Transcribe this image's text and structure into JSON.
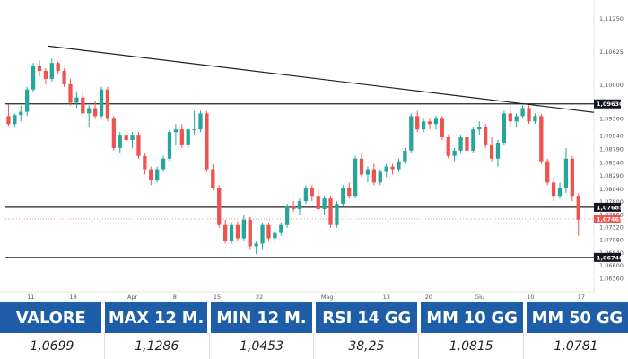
{
  "chart_data": {
    "type": "candlestick",
    "y_ticks": [
      "1,11250",
      "1,10625",
      "1,10000",
      "1,09630",
      "1,09360",
      "1,09040",
      "1,08790",
      "1,08540",
      "1,08290",
      "1,08040",
      "1,07800",
      "1,07685",
      "1,07560",
      "1,07465",
      "1,07320",
      "1,07080",
      "1,06840",
      "1,06740",
      "1,06600",
      "1,06360"
    ],
    "x_ticks": [
      "11",
      "18",
      "Apr",
      "8",
      "15",
      "22",
      "Mag",
      "13",
      "20",
      "Giu",
      "10",
      "17"
    ],
    "ylim": [
      1.0618,
      1.1145
    ],
    "horizontal_lines": [
      {
        "value": 1.0963,
        "label": "1,09630"
      },
      {
        "value": 1.07685,
        "label": "1,07685"
      },
      {
        "value": 1.0674,
        "label": "1,06740"
      }
    ],
    "trendline": [
      [
        1,
        1.1072
      ],
      [
        94,
        1.0947
      ]
    ],
    "last_price": {
      "value": 1.07465,
      "label": "1,07465"
    },
    "candles": [
      [
        1.094,
        1.0962,
        1.0922,
        1.0925
      ],
      [
        1.0925,
        1.0945,
        1.0918,
        1.0942
      ],
      [
        1.0942,
        1.096,
        1.093,
        1.0948
      ],
      [
        1.0948,
        1.0995,
        1.094,
        1.099
      ],
      [
        1.099,
        1.104,
        1.0985,
        1.1035
      ],
      [
        1.1035,
        1.1045,
        1.1015,
        1.1025
      ],
      [
        1.1025,
        1.103,
        1.1,
        1.101
      ],
      [
        1.101,
        1.1048,
        1.1005,
        1.104
      ],
      [
        1.104,
        1.1043,
        1.102,
        1.1025
      ],
      [
        1.1025,
        1.103,
        1.0995,
        1.1
      ],
      [
        1.1,
        1.101,
        1.096,
        1.0965
      ],
      [
        1.0965,
        1.0985,
        1.0955,
        1.0975
      ],
      [
        1.0975,
        1.099,
        1.094,
        1.0945
      ],
      [
        1.0945,
        1.096,
        1.092,
        1.0955
      ],
      [
        1.0955,
        1.0968,
        1.0935,
        1.094
      ],
      [
        1.094,
        1.0995,
        1.0935,
        1.099
      ],
      [
        1.099,
        1.0995,
        1.093,
        1.0935
      ],
      [
        1.0935,
        1.094,
        1.0875,
        1.088
      ],
      [
        1.088,
        1.091,
        1.087,
        1.0905
      ],
      [
        1.0905,
        1.0915,
        1.089,
        1.0895
      ],
      [
        1.0895,
        1.091,
        1.088,
        1.0905
      ],
      [
        1.0905,
        1.091,
        1.086,
        1.0865
      ],
      [
        1.0865,
        1.087,
        1.083,
        1.084
      ],
      [
        1.084,
        1.0845,
        1.081,
        1.082
      ],
      [
        1.082,
        1.0845,
        1.0815,
        1.084
      ],
      [
        1.084,
        1.0865,
        1.0835,
        1.086
      ],
      [
        1.086,
        1.0915,
        1.0855,
        1.091
      ],
      [
        1.091,
        1.0925,
        1.0885,
        1.0915
      ],
      [
        1.0915,
        1.0925,
        1.088,
        1.0885
      ],
      [
        1.0885,
        1.092,
        1.088,
        1.0915
      ],
      [
        1.0915,
        1.095,
        1.0905,
        1.0915
      ],
      [
        1.0915,
        1.095,
        1.091,
        1.0945
      ],
      [
        1.0945,
        1.095,
        1.0835,
        1.084
      ],
      [
        1.084,
        1.085,
        1.08,
        1.0805
      ],
      [
        1.0805,
        1.081,
        1.073,
        1.0735
      ],
      [
        1.0735,
        1.0745,
        1.07,
        1.0705
      ],
      [
        1.0705,
        1.074,
        1.07,
        1.0735
      ],
      [
        1.0735,
        1.0742,
        1.0705,
        1.071
      ],
      [
        1.071,
        1.0755,
        1.0705,
        1.0745
      ],
      [
        1.0745,
        1.075,
        1.069,
        1.0695
      ],
      [
        1.0695,
        1.0705,
        1.068,
        1.07
      ],
      [
        1.07,
        1.074,
        1.069,
        1.0735
      ],
      [
        1.0735,
        1.0738,
        1.0705,
        1.071
      ],
      [
        1.071,
        1.0725,
        1.07,
        1.072
      ],
      [
        1.072,
        1.074,
        1.0715,
        1.0735
      ],
      [
        1.0735,
        1.0775,
        1.073,
        1.077
      ],
      [
        1.077,
        1.078,
        1.076,
        1.0765
      ],
      [
        1.0765,
        1.0785,
        1.0755,
        1.078
      ],
      [
        1.078,
        1.081,
        1.0775,
        1.0805
      ],
      [
        1.0805,
        1.081,
        1.078,
        1.079
      ],
      [
        1.079,
        1.08,
        1.076,
        1.0765
      ],
      [
        1.0765,
        1.079,
        1.0755,
        1.0785
      ],
      [
        1.0785,
        1.079,
        1.073,
        1.0735
      ],
      [
        1.0735,
        1.078,
        1.073,
        1.0775
      ],
      [
        1.0775,
        1.081,
        1.077,
        1.0805
      ],
      [
        1.0805,
        1.0815,
        1.0785,
        1.079
      ],
      [
        1.079,
        1.0865,
        1.0785,
        1.086
      ],
      [
        1.086,
        1.087,
        1.0825,
        1.083
      ],
      [
        1.083,
        1.0845,
        1.0815,
        1.084
      ],
      [
        1.084,
        1.085,
        1.081,
        1.0815
      ],
      [
        1.0815,
        1.084,
        1.081,
        1.0835
      ],
      [
        1.0835,
        1.085,
        1.0825,
        1.0845
      ],
      [
        1.0845,
        1.085,
        1.083,
        1.084
      ],
      [
        1.084,
        1.086,
        1.0835,
        1.0855
      ],
      [
        1.0855,
        1.088,
        1.085,
        1.0875
      ],
      [
        1.0875,
        1.0945,
        1.087,
        1.094
      ],
      [
        1.094,
        1.095,
        1.091,
        1.0915
      ],
      [
        1.0915,
        1.0935,
        1.091,
        1.093
      ],
      [
        1.093,
        1.0935,
        1.0915,
        1.0925
      ],
      [
        1.0925,
        1.094,
        1.0915,
        1.0935
      ],
      [
        1.0935,
        1.094,
        1.0895,
        1.09
      ],
      [
        1.09,
        1.0905,
        1.086,
        1.0865
      ],
      [
        1.0865,
        1.088,
        1.0855,
        1.0875
      ],
      [
        1.0875,
        1.0905,
        1.087,
        1.09
      ],
      [
        1.09,
        1.091,
        1.087,
        1.0875
      ],
      [
        1.0875,
        1.092,
        1.087,
        1.0915
      ],
      [
        1.0915,
        1.093,
        1.0905,
        1.092
      ],
      [
        1.092,
        1.0925,
        1.088,
        1.0885
      ],
      [
        1.0885,
        1.09,
        1.0855,
        1.086
      ],
      [
        1.086,
        1.0895,
        1.0845,
        1.089
      ],
      [
        1.089,
        1.095,
        1.0885,
        1.0945
      ],
      [
        1.0945,
        1.096,
        1.092,
        1.093
      ],
      [
        1.093,
        1.0945,
        1.092,
        1.094
      ],
      [
        1.094,
        1.096,
        1.0935,
        1.0955
      ],
      [
        1.0955,
        1.096,
        1.0925,
        1.093
      ],
      [
        1.093,
        1.0945,
        1.0925,
        1.094
      ],
      [
        1.094,
        1.0945,
        1.085,
        1.0855
      ],
      [
        1.0855,
        1.086,
        1.081,
        1.0815
      ],
      [
        1.0815,
        1.0825,
        1.078,
        1.079
      ],
      [
        1.079,
        1.0815,
        1.0785,
        1.0805
      ],
      [
        1.0805,
        1.088,
        1.0795,
        1.086
      ],
      [
        1.086,
        1.0865,
        1.078,
        1.079
      ],
      [
        1.079,
        1.0795,
        1.0715,
        1.0745
      ]
    ]
  },
  "stats": {
    "headers": [
      "VALORE",
      "MAX 12 M.",
      "MIN 12 M.",
      "RSI 14 GG",
      "MM 10 GG",
      "MM 50 GG"
    ],
    "values": [
      "1,0699",
      "1,1286",
      "1,0453",
      "38,25",
      "1,0815",
      "1,0781"
    ]
  },
  "colors": {
    "up": "#26a69a",
    "down": "#ef5350",
    "header_bg": "#1e5ea8",
    "label_box": "#131722"
  }
}
